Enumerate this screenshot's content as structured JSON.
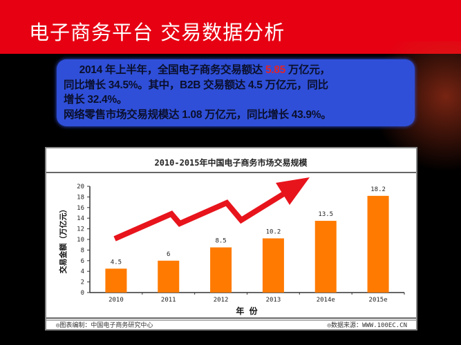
{
  "slide": {
    "title": "电子商务平台 交易数据分析",
    "summary": {
      "line1_pre": "2014 年上半年，全国电子商务交易额达 ",
      "line1_highlight": "5.85",
      "line1_post": " 万亿元，",
      "line2": "同比增长 34.5%。其中，B2B 交易额达 4.5 万亿元，同比",
      "line3": "增长 32.4%。",
      "line4": "网络零售市场交易规模达 1.08 万亿元，同比增长 43.9%。"
    },
    "colors": {
      "header": "#e60012",
      "textbox": "#2f4fd8",
      "highlight": "#e0242a",
      "bar": "#ff7a00",
      "arrow": "#e8141c"
    }
  },
  "chart_data": {
    "type": "bar",
    "title": "2010-2015年中国电子商务市场交易规模",
    "xlabel": "年 份",
    "ylabel": "交易金额（万亿元）",
    "categories": [
      "2010",
      "2011",
      "2012",
      "2013",
      "2014e",
      "2015e"
    ],
    "values": [
      4.5,
      6,
      8.5,
      10.2,
      13.5,
      18.2
    ],
    "data_labels": [
      "4.5",
      "6",
      "8.5",
      "10.2",
      "13.5",
      "18.2"
    ],
    "ylim": [
      0,
      20
    ],
    "yticks": [
      0,
      2,
      4,
      6,
      8,
      10,
      12,
      14,
      16,
      18,
      20
    ],
    "grid": false,
    "decoration": "red zigzag upward arrow",
    "footer_left": "◎图表编制：中国电子商务研究中心",
    "footer_right": "◎数据来源：WWW.100EC.CN"
  }
}
